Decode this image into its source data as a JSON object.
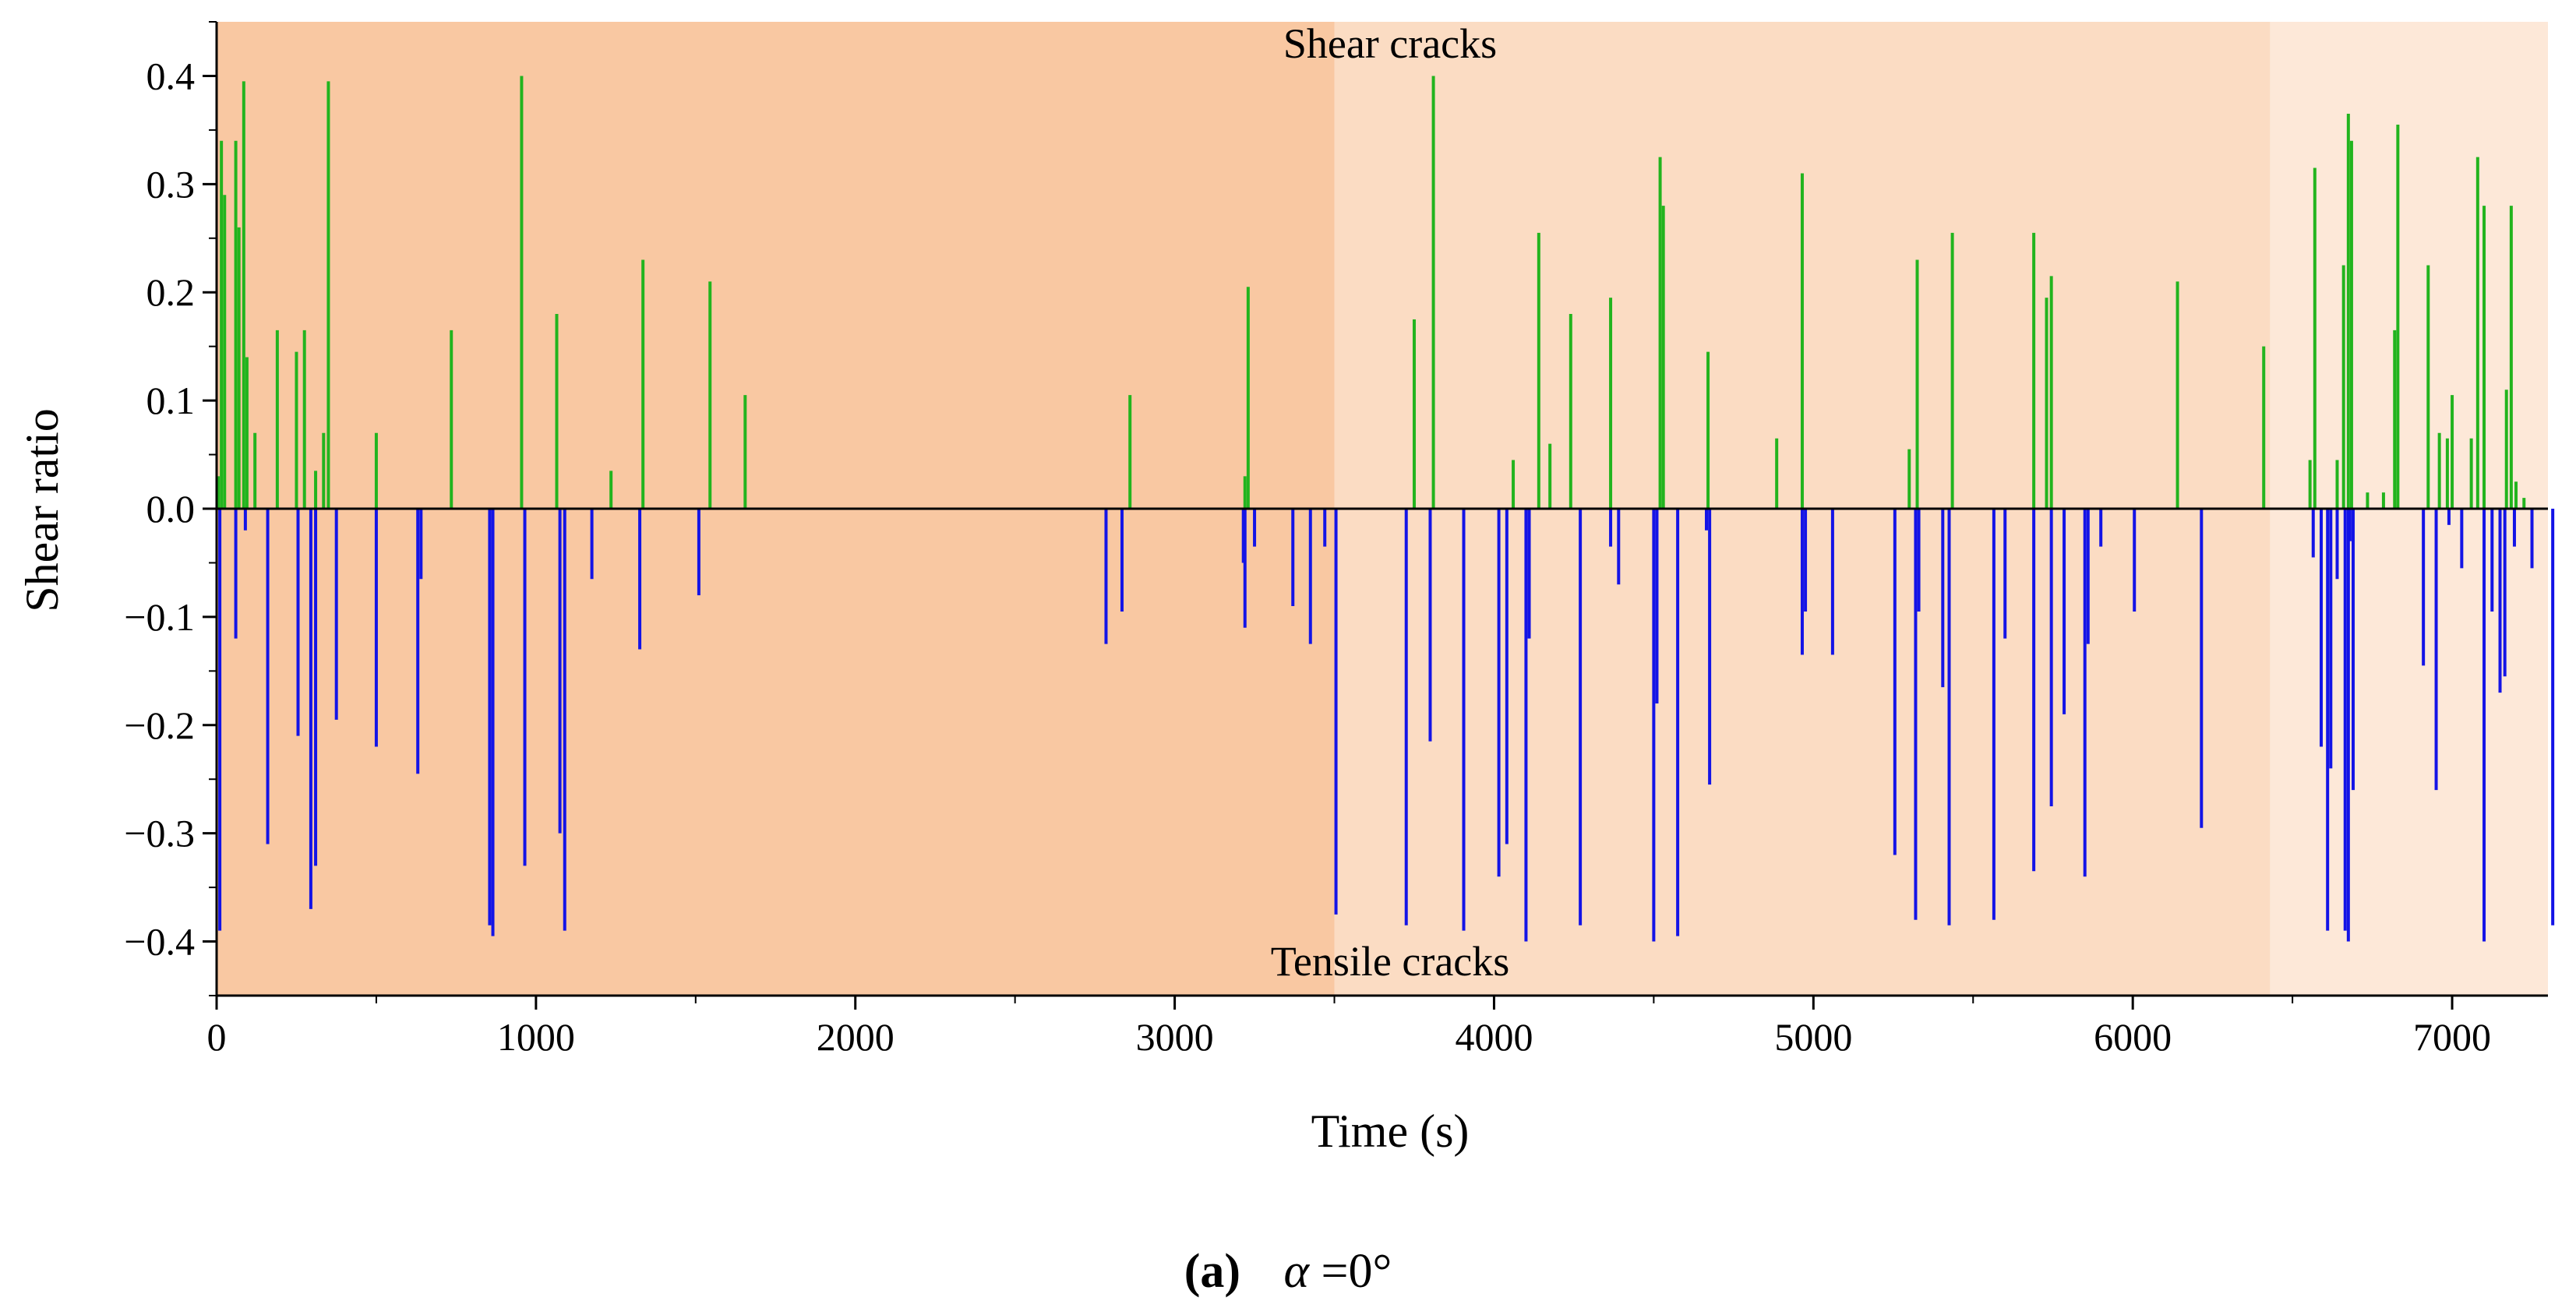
{
  "chart_data": {
    "type": "bar",
    "title": "",
    "xlabel": "Time (s)",
    "ylabel": "Shear ratio",
    "xlim": [
      0,
      7300
    ],
    "ylim": [
      -0.45,
      0.45
    ],
    "xticks": [
      0,
      1000,
      2000,
      3000,
      4000,
      5000,
      6000,
      7000
    ],
    "yticks": [
      0.4,
      0.3,
      0.2,
      0.1,
      0.0,
      -0.1,
      -0.2,
      -0.3,
      -0.4
    ],
    "xtick_labels": [
      "0",
      "1000",
      "2000",
      "3000",
      "4000",
      "5000",
      "6000",
      "7000"
    ],
    "ytick_labels": [
      "0.4",
      "0.3",
      "0.2",
      "0.1",
      "0.0",
      "−0.1",
      "−0.2",
      "−0.3",
      "−0.4"
    ],
    "annotations": {
      "top": "Shear cracks",
      "bottom": "Tensile cracks"
    },
    "caption": {
      "label": "(a)",
      "greek": "α",
      "rest": "=0°"
    },
    "stages": [
      {
        "start": 0,
        "end": 3500,
        "color": "#f9c8a2"
      },
      {
        "start": 3500,
        "end": 6430,
        "color": "#fbdcc3"
      },
      {
        "start": 6430,
        "end": 7300,
        "color": "#fde8d8"
      }
    ],
    "series": [
      {
        "name": "Shear cracks",
        "color": "#22b41e",
        "x": [
          5,
          15,
          25,
          60,
          70,
          85,
          95,
          120,
          190,
          250,
          275,
          310,
          335,
          350,
          500,
          735,
          955,
          1065,
          1235,
          1335,
          1545,
          1655,
          2860,
          3220,
          3230,
          3750,
          3810,
          4060,
          4140,
          4175,
          4240,
          4365,
          4520,
          4530,
          4670,
          4885,
          4965,
          5300,
          5325,
          5435,
          5690,
          5730,
          5745,
          6140,
          6410,
          6555,
          6570,
          6640,
          6660,
          6675,
          6685,
          6735,
          6785,
          6820,
          6830,
          6925,
          6960,
          6985,
          7000,
          7060,
          7080,
          7100,
          7170,
          7185,
          7200,
          7225
        ],
        "values": [
          0.03,
          0.34,
          0.29,
          0.34,
          0.26,
          0.395,
          0.14,
          0.07,
          0.165,
          0.145,
          0.165,
          0.035,
          0.07,
          0.395,
          0.07,
          0.165,
          0.4,
          0.18,
          0.035,
          0.23,
          0.21,
          0.105,
          0.105,
          0.03,
          0.205,
          0.175,
          0.4,
          0.045,
          0.255,
          0.06,
          0.18,
          0.195,
          0.325,
          0.28,
          0.145,
          0.065,
          0.31,
          0.055,
          0.23,
          0.255,
          0.255,
          0.195,
          0.215,
          0.21,
          0.15,
          0.045,
          0.315,
          0.045,
          0.225,
          0.365,
          0.34,
          0.015,
          0.015,
          0.165,
          0.355,
          0.225,
          0.07,
          0.065,
          0.105,
          0.065,
          0.325,
          0.28,
          0.11,
          0.28,
          0.025,
          0.01
        ]
      },
      {
        "name": "Tensile cracks",
        "color": "#1414e6",
        "x": [
          10,
          60,
          90,
          160,
          255,
          295,
          310,
          375,
          500,
          630,
          640,
          855,
          865,
          965,
          1075,
          1090,
          1175,
          1325,
          1510,
          2785,
          2835,
          3215,
          3220,
          3250,
          3370,
          3425,
          3470,
          3505,
          3725,
          3800,
          3905,
          4015,
          4040,
          4100,
          4110,
          4270,
          4365,
          4390,
          4500,
          4510,
          4575,
          4665,
          4675,
          4965,
          4975,
          5060,
          5255,
          5320,
          5330,
          5405,
          5425,
          5565,
          5600,
          5690,
          5745,
          5785,
          5850,
          5860,
          5900,
          6005,
          6215,
          6565,
          6590,
          6610,
          6620,
          6640,
          6665,
          6675,
          6680,
          6690,
          6910,
          6950,
          6990,
          7030,
          7100,
          7125,
          7150,
          7165,
          7195,
          7250,
          7315
        ],
        "values": [
          -0.39,
          -0.12,
          -0.02,
          -0.31,
          -0.21,
          -0.37,
          -0.33,
          -0.195,
          -0.22,
          -0.245,
          -0.065,
          -0.385,
          -0.395,
          -0.33,
          -0.3,
          -0.39,
          -0.065,
          -0.13,
          -0.08,
          -0.125,
          -0.095,
          -0.05,
          -0.11,
          -0.035,
          -0.09,
          -0.125,
          -0.035,
          -0.375,
          -0.385,
          -0.215,
          -0.39,
          -0.34,
          -0.31,
          -0.4,
          -0.12,
          -0.385,
          -0.035,
          -0.07,
          -0.4,
          -0.18,
          -0.395,
          -0.02,
          -0.255,
          -0.135,
          -0.095,
          -0.135,
          -0.32,
          -0.38,
          -0.095,
          -0.165,
          -0.385,
          -0.38,
          -0.12,
          -0.335,
          -0.275,
          -0.19,
          -0.34,
          -0.125,
          -0.035,
          -0.095,
          -0.295,
          -0.045,
          -0.22,
          -0.39,
          -0.24,
          -0.065,
          -0.39,
          -0.4,
          -0.03,
          -0.26,
          -0.145,
          -0.26,
          -0.015,
          -0.055,
          -0.4,
          -0.095,
          -0.17,
          -0.155,
          -0.035,
          -0.055,
          -0.385
        ]
      }
    ]
  }
}
